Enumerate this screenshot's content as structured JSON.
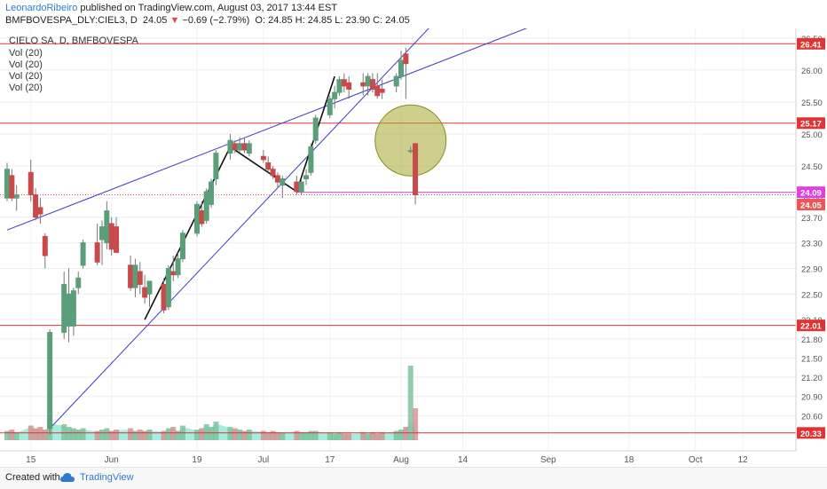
{
  "header": {
    "author": "LeonardoRibeiro",
    "published": "published on TradingView.com, August 03, 2017 13:44 EST",
    "symbol": "BMFBOVESPA_DLY:CIEL3, D",
    "last": "24.05",
    "change_arrow": "▼",
    "change": "−0.69 (−2.79%)",
    "ohlc": "O: 24.85  H: 24.85  L: 23.90  C: 24.05"
  },
  "legend": {
    "title": "CIELO SA, D, BMFBOVESPA",
    "vol": [
      "Vol (20)",
      "Vol (20)",
      "Vol (20)",
      "Vol (20)"
    ]
  },
  "footer": {
    "created": "Created with",
    "brand": "TradingView",
    "logo_icon": "tradingview-cloud-icon"
  },
  "colors": {
    "up": "#5a9e7a",
    "down": "#c84a4a",
    "trendline": "#3a3ac8",
    "hline": "#e03333",
    "magenta": "#e040e0",
    "volume_area": "#3ad6b8",
    "circle_fill": "#a6a830",
    "last_price": "#ee5555"
  },
  "chart_data": {
    "type": "candlestick",
    "ylim": [
      20.05,
      26.65
    ],
    "y_ticks": [
      "26.50",
      "26.00",
      "25.50",
      "25.00",
      "24.50",
      "24.00",
      "23.70",
      "23.30",
      "22.90",
      "22.50",
      "22.10",
      "21.80",
      "21.50",
      "21.20",
      "20.90",
      "20.60"
    ],
    "x_ticks": [
      "15",
      "Jun",
      "19",
      "Jul",
      "17",
      "Aug",
      "14",
      "Sep",
      "18",
      "Oct",
      "12"
    ],
    "price_labels": [
      {
        "value": "26.41",
        "kind": "hline"
      },
      {
        "value": "25.17",
        "kind": "hline"
      },
      {
        "value": "24.09",
        "kind": "magenta"
      },
      {
        "value": "24.05",
        "kind": "last"
      },
      {
        "value": "22.01",
        "kind": "hline"
      },
      {
        "value": "20.33",
        "kind": "hline"
      }
    ],
    "horizontal_lines": [
      26.41,
      25.17,
      22.01,
      20.33
    ],
    "magenta_line": 24.09,
    "last_price": 24.05,
    "candles": [
      {
        "date": "2017-05-10",
        "o": 24.0,
        "h": 24.55,
        "l": 23.95,
        "c": 24.45
      },
      {
        "date": "2017-05-11",
        "o": 24.35,
        "h": 24.45,
        "l": 23.95,
        "c": 24.0
      },
      {
        "date": "2017-05-12",
        "o": 24.0,
        "h": 24.2,
        "l": 23.8,
        "c": 24.05
      },
      {
        "date": "2017-05-15",
        "o": 24.4,
        "h": 24.6,
        "l": 23.95,
        "c": 24.05
      },
      {
        "date": "2017-05-16",
        "o": 24.05,
        "h": 24.15,
        "l": 23.65,
        "c": 23.7
      },
      {
        "date": "2017-05-17",
        "o": 23.85,
        "h": 24.0,
        "l": 23.6,
        "c": 23.75
      },
      {
        "date": "2017-05-18",
        "o": 23.4,
        "h": 23.45,
        "l": 22.9,
        "c": 23.1
      },
      {
        "date": "2017-05-19",
        "o": 20.4,
        "h": 21.95,
        "l": 20.3,
        "c": 21.9
      },
      {
        "date": "2017-05-22",
        "o": 21.9,
        "h": 22.85,
        "l": 21.8,
        "c": 22.65
      },
      {
        "date": "2017-05-23",
        "o": 22.0,
        "h": 22.9,
        "l": 21.75,
        "c": 22.5
      },
      {
        "date": "2017-05-24",
        "o": 22.0,
        "h": 22.6,
        "l": 21.85,
        "c": 22.55
      },
      {
        "date": "2017-05-25",
        "o": 22.6,
        "h": 22.85,
        "l": 22.5,
        "c": 22.75
      },
      {
        "date": "2017-05-26",
        "o": 22.95,
        "h": 23.35,
        "l": 22.9,
        "c": 23.3
      },
      {
        "date": "2017-05-29",
        "o": 23.3,
        "h": 23.6,
        "l": 22.95,
        "c": 23.0
      },
      {
        "date": "2017-05-30",
        "o": 23.35,
        "h": 23.65,
        "l": 22.95,
        "c": 23.55
      },
      {
        "date": "2017-05-31",
        "o": 23.3,
        "h": 23.95,
        "l": 23.2,
        "c": 23.8
      },
      {
        "date": "2017-06-01",
        "o": 23.6,
        "h": 23.7,
        "l": 23.1,
        "c": 23.2
      },
      {
        "date": "2017-06-02",
        "o": 23.55,
        "h": 23.7,
        "l": 23.15,
        "c": 23.15
      },
      {
        "date": "2017-06-05",
        "o": 22.95,
        "h": 23.1,
        "l": 22.55,
        "c": 22.6
      },
      {
        "date": "2017-06-06",
        "o": 22.6,
        "h": 23.05,
        "l": 22.45,
        "c": 22.95
      },
      {
        "date": "2017-06-07",
        "o": 22.85,
        "h": 23.0,
        "l": 22.5,
        "c": 22.65
      },
      {
        "date": "2017-06-08",
        "o": 22.6,
        "h": 22.8,
        "l": 22.35,
        "c": 22.45
      },
      {
        "date": "2017-06-09",
        "o": 22.5,
        "h": 22.7,
        "l": 22.3,
        "c": 22.7
      },
      {
        "date": "2017-06-12",
        "o": 22.65,
        "h": 22.75,
        "l": 22.2,
        "c": 22.25
      },
      {
        "date": "2017-06-13",
        "o": 22.3,
        "h": 22.95,
        "l": 22.25,
        "c": 22.9
      },
      {
        "date": "2017-06-14",
        "o": 22.85,
        "h": 23.1,
        "l": 22.7,
        "c": 22.8
      },
      {
        "date": "2017-06-15",
        "o": 22.8,
        "h": 23.15,
        "l": 22.75,
        "c": 23.05
      },
      {
        "date": "2017-06-16",
        "o": 23.05,
        "h": 23.5,
        "l": 23.0,
        "c": 23.45
      },
      {
        "date": "2017-06-19",
        "o": 23.45,
        "h": 23.95,
        "l": 23.4,
        "c": 23.9
      },
      {
        "date": "2017-06-20",
        "o": 23.8,
        "h": 23.95,
        "l": 23.55,
        "c": 23.6
      },
      {
        "date": "2017-06-21",
        "o": 23.65,
        "h": 24.15,
        "l": 23.6,
        "c": 24.1
      },
      {
        "date": "2017-06-22",
        "o": 23.9,
        "h": 24.3,
        "l": 23.85,
        "c": 24.25
      },
      {
        "date": "2017-06-23",
        "o": 24.3,
        "h": 24.75,
        "l": 24.2,
        "c": 24.7
      },
      {
        "date": "2017-06-26",
        "o": 24.7,
        "h": 25.0,
        "l": 24.6,
        "c": 24.9
      },
      {
        "date": "2017-06-27",
        "o": 24.85,
        "h": 24.9,
        "l": 24.7,
        "c": 24.75
      },
      {
        "date": "2017-06-28",
        "o": 24.75,
        "h": 24.95,
        "l": 24.7,
        "c": 24.85
      },
      {
        "date": "2017-06-29",
        "o": 24.85,
        "h": 24.95,
        "l": 24.7,
        "c": 24.75
      },
      {
        "date": "2017-06-30",
        "o": 24.7,
        "h": 24.9,
        "l": 24.65,
        "c": 24.85
      },
      {
        "date": "2017-07-03",
        "o": 24.65,
        "h": 24.75,
        "l": 24.55,
        "c": 24.6
      },
      {
        "date": "2017-07-04",
        "o": 24.55,
        "h": 24.65,
        "l": 24.4,
        "c": 24.45
      },
      {
        "date": "2017-07-05",
        "o": 24.45,
        "h": 24.5,
        "l": 24.3,
        "c": 24.35
      },
      {
        "date": "2017-07-06",
        "o": 24.35,
        "h": 24.4,
        "l": 24.15,
        "c": 24.25
      },
      {
        "date": "2017-07-07",
        "o": 24.2,
        "h": 24.35,
        "l": 24.0,
        "c": 24.3
      },
      {
        "date": "2017-07-10",
        "o": 24.25,
        "h": 24.35,
        "l": 24.05,
        "c": 24.1
      },
      {
        "date": "2017-07-11",
        "o": 24.1,
        "h": 24.3,
        "l": 24.05,
        "c": 24.25
      },
      {
        "date": "2017-07-12",
        "o": 24.3,
        "h": 24.45,
        "l": 24.2,
        "c": 24.35
      },
      {
        "date": "2017-07-13",
        "o": 24.4,
        "h": 24.85,
        "l": 24.35,
        "c": 24.8
      },
      {
        "date": "2017-07-14",
        "o": 24.9,
        "h": 25.3,
        "l": 24.85,
        "c": 25.25
      },
      {
        "date": "2017-07-17",
        "o": 25.3,
        "h": 25.6,
        "l": 25.25,
        "c": 25.55
      },
      {
        "date": "2017-07-18",
        "o": 25.55,
        "h": 25.75,
        "l": 25.4,
        "c": 25.65
      },
      {
        "date": "2017-07-19",
        "o": 25.65,
        "h": 25.9,
        "l": 25.6,
        "c": 25.85
      },
      {
        "date": "2017-07-20",
        "o": 25.85,
        "h": 25.95,
        "l": 25.65,
        "c": 25.75
      },
      {
        "date": "2017-07-21",
        "o": 25.8,
        "h": 25.9,
        "l": 25.55,
        "c": 25.7
      },
      {
        "date": "2017-07-24",
        "o": 25.8,
        "h": 25.95,
        "l": 25.6,
        "c": 25.75
      },
      {
        "date": "2017-07-25",
        "o": 25.75,
        "h": 25.95,
        "l": 25.6,
        "c": 25.9
      },
      {
        "date": "2017-07-26",
        "o": 25.85,
        "h": 25.95,
        "l": 25.65,
        "c": 25.7
      },
      {
        "date": "2017-07-27",
        "o": 25.75,
        "h": 25.95,
        "l": 25.55,
        "c": 25.6
      },
      {
        "date": "2017-07-28",
        "o": 25.7,
        "h": 25.85,
        "l": 25.55,
        "c": 25.65
      },
      {
        "date": "2017-07-31",
        "o": 25.75,
        "h": 25.95,
        "l": 25.65,
        "c": 25.9
      },
      {
        "date": "2017-08-01",
        "o": 25.9,
        "h": 26.3,
        "l": 25.85,
        "c": 26.15
      },
      {
        "date": "2017-08-02",
        "o": 26.25,
        "h": 26.35,
        "l": 25.55,
        "c": 26.1
      },
      {
        "date": "2017-08-03",
        "o": 24.74,
        "h": 24.8,
        "l": 24.7,
        "c": 24.74
      },
      {
        "date": "2017-08-04",
        "o": 24.85,
        "h": 24.85,
        "l": 23.9,
        "c": 24.05
      }
    ],
    "volume_bars": [
      0.35,
      0.4,
      0.3,
      0.55,
      0.45,
      0.5,
      0.4,
      0.9,
      0.6,
      0.5,
      0.45,
      0.4,
      0.45,
      0.35,
      0.4,
      0.45,
      0.35,
      0.4,
      0.45,
      0.35,
      0.4,
      0.35,
      0.4,
      0.35,
      0.45,
      0.5,
      0.35,
      0.55,
      0.4,
      0.45,
      0.6,
      0.5,
      0.7,
      0.5,
      0.45,
      0.4,
      0.35,
      0.4,
      0.35,
      0.3,
      0.35,
      0.3,
      0.3,
      0.35,
      0.3,
      0.3,
      0.35,
      0.35,
      0.3,
      0.25,
      0.3,
      0.25,
      0.25,
      0.3,
      0.25,
      0.3,
      0.25,
      0.3,
      0.35,
      0.4,
      0.5,
      2.8,
      1.2
    ],
    "annotations": [
      {
        "kind": "rising-trendline",
        "from": {
          "date": "2017-05-10",
          "price": 23.5
        },
        "to": {
          "date": "2017-09-05",
          "price": 26.9
        }
      },
      {
        "kind": "steep-trendline",
        "from": {
          "date": "2017-05-19",
          "price": 20.4
        },
        "to": {
          "date": "2017-08-10",
          "price": 26.9
        }
      },
      {
        "kind": "zigzag",
        "points": [
          {
            "date": "2017-06-08",
            "price": 22.1
          },
          {
            "date": "2017-06-26",
            "price": 24.8
          },
          {
            "date": "2017-07-10",
            "price": 24.1
          },
          {
            "date": "2017-07-18",
            "price": 25.9
          }
        ]
      },
      {
        "kind": "circle",
        "center": {
          "date": "2017-08-03",
          "price": 24.9
        }
      }
    ]
  }
}
